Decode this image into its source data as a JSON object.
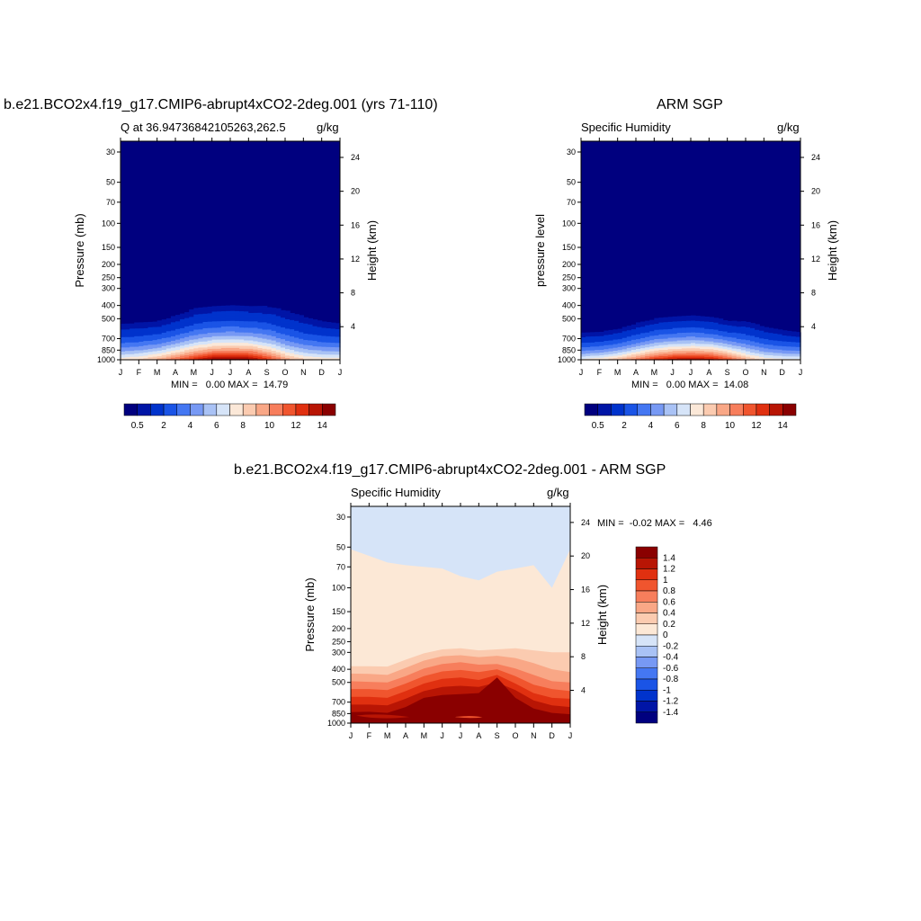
{
  "figure": {
    "panel1_title": "b.e21.BCO2x4.f19_g17.CMIP6-abrupt4xCO2-2deg.001 (yrs 71-110)",
    "panel2_title": "ARM SGP",
    "panel3_title": "b.e21.BCO2x4.f19_g17.CMIP6-abrupt4xCO2-2deg.001 - ARM SGP"
  },
  "chart_data": [
    {
      "type": "heatmap",
      "title": "b.e21.BCO2x4.f19_g17.CMIP6-abrupt4xCO2-2deg.001 (yrs 71-110)",
      "left_subtitle": "Q at 36.94736842105263,262.5",
      "right_subtitle": "g/kg",
      "ylabel": "Pressure (mb)",
      "y2label": "Height (km)",
      "x_ticks": [
        "J",
        "F",
        "M",
        "A",
        "M",
        "J",
        "J",
        "A",
        "S",
        "O",
        "N",
        "D",
        "J"
      ],
      "y_ticks": [
        30,
        50,
        70,
        100,
        150,
        200,
        250,
        300,
        400,
        500,
        700,
        850,
        1000
      ],
      "y2_ticks": [
        24,
        20,
        16,
        12,
        8,
        4
      ],
      "ylim": [
        1000,
        25
      ],
      "y_scale": "log",
      "min_max_text": "MIN =   0.00 MAX =  14.79",
      "colorbar_labels": [
        "0.5",
        "2",
        "4",
        "6",
        "8",
        "10",
        "12",
        "14"
      ],
      "colorbar_orientation": "horizontal",
      "cmap": [
        "#00007f",
        "#0015a6",
        "#0033cc",
        "#1a54e6",
        "#4477f2",
        "#7799f4",
        "#a9c2f5",
        "#d6e4f8",
        "#fbe8d8",
        "#fbcbb0",
        "#f9a786",
        "#f77e5c",
        "#f0552e",
        "#e03010",
        "#b81504",
        "#8a0000"
      ],
      "levels": [
        0.5,
        1,
        2,
        3,
        4,
        5,
        6,
        7,
        8,
        9,
        10,
        11,
        12,
        13,
        14
      ],
      "profile_pressures": [
        1000,
        925,
        850,
        775,
        700,
        600,
        500,
        400,
        300,
        250,
        200,
        30
      ],
      "surface_q": [
        7.8,
        8.4,
        9.6,
        11.4,
        13.2,
        14.6,
        14.79,
        14.5,
        12.4,
        9.6,
        8.2,
        7.8,
        7.8
      ],
      "cap_pressure": [
        430,
        425,
        415,
        370,
        320,
        305,
        298,
        305,
        302,
        320,
        360,
        405,
        430
      ]
    },
    {
      "type": "heatmap",
      "title": "ARM SGP",
      "left_subtitle": "Specific Humidity",
      "right_subtitle": "g/kg",
      "ylabel": "pressure level",
      "y2label": "Height (km)",
      "x_ticks": [
        "J",
        "F",
        "M",
        "A",
        "M",
        "J",
        "J",
        "A",
        "S",
        "O",
        "N",
        "D",
        "J"
      ],
      "y_ticks": [
        30,
        50,
        70,
        100,
        150,
        200,
        250,
        300,
        400,
        500,
        700,
        850,
        1000
      ],
      "y2_ticks": [
        24,
        20,
        16,
        12,
        8,
        4
      ],
      "ylim": [
        1000,
        25
      ],
      "y_scale": "log",
      "min_max_text": "MIN =   0.00 MAX =  14.08",
      "colorbar_labels": [
        "0.5",
        "2",
        "4",
        "6",
        "8",
        "10",
        "12",
        "14"
      ],
      "colorbar_orientation": "horizontal",
      "surface_q": [
        7.4,
        8.0,
        9.2,
        11.0,
        12.8,
        13.8,
        14.08,
        13.6,
        11.8,
        9.2,
        7.8,
        7.4,
        7.4
      ],
      "cap_pressure": [
        540,
        530,
        500,
        445,
        410,
        395,
        385,
        400,
        430,
        420,
        470,
        510,
        540
      ]
    },
    {
      "type": "heatmap",
      "title": "b.e21.BCO2x4.f19_g17.CMIP6-abrupt4xCO2-2deg.001 - ARM SGP",
      "left_subtitle": "Specific Humidity",
      "right_subtitle": "g/kg",
      "ylabel": "Pressure (mb)",
      "y2label": "Height (km)",
      "x_ticks": [
        "J",
        "F",
        "M",
        "A",
        "M",
        "J",
        "J",
        "A",
        "S",
        "O",
        "N",
        "D",
        "J"
      ],
      "y_ticks": [
        30,
        50,
        70,
        100,
        150,
        200,
        250,
        300,
        400,
        500,
        700,
        850,
        1000
      ],
      "y2_ticks": [
        24,
        20,
        16,
        12,
        8,
        4
      ],
      "ylim": [
        1000,
        25
      ],
      "y_scale": "log",
      "min_max_text": "MIN =  -0.02 MAX =   4.46",
      "colorbar_labels": [
        "1.4",
        "1.2",
        "1",
        "0.8",
        "0.6",
        "0.4",
        "0.2",
        "0",
        "-0.2",
        "-0.4",
        "-0.6",
        "-0.8",
        "-1",
        "-1.2",
        "-1.4"
      ],
      "colorbar_orientation": "vertical",
      "cmap": [
        "#8a0000",
        "#b81504",
        "#e03010",
        "#f0552e",
        "#f77e5c",
        "#f9a786",
        "#fbcbb0",
        "#fce8d6",
        "#d6e4f8",
        "#a9c2f5",
        "#7799f4",
        "#4477f2",
        "#1a54e6",
        "#0033cc",
        "#0015a6",
        "#00007f"
      ],
      "bands_pressure": {
        "zero_line": [
          52,
          58,
          65,
          68,
          70,
          72,
          82,
          88,
          76,
          72,
          68,
          100,
          52
        ],
        "p0_2": [
          380,
          380,
          382,
          340,
          305,
          285,
          280,
          290,
          285,
          280,
          290,
          300,
          300
        ],
        "p0_4": [
          430,
          432,
          440,
          390,
          345,
          320,
          315,
          325,
          318,
          330,
          360,
          400,
          420
        ],
        "p0_6": [
          490,
          495,
          500,
          450,
          395,
          365,
          355,
          370,
          365,
          395,
          440,
          490,
          500
        ],
        "p0_8": [
          560,
          560,
          570,
          510,
          450,
          415,
          405,
          420,
          400,
          450,
          520,
          560,
          580
        ],
        "p1_0": [
          640,
          640,
          650,
          580,
          510,
          470,
          460,
          480,
          440,
          510,
          600,
          650,
          660
        ],
        "p1_2": [
          730,
          730,
          740,
          660,
          580,
          540,
          530,
          540,
          500,
          570,
          680,
          740,
          760
        ],
        "p1_4": [
          830,
          825,
          840,
          760,
          650,
          620,
          610,
          600,
          460,
          650,
          780,
          840,
          860
        ]
      }
    }
  ]
}
